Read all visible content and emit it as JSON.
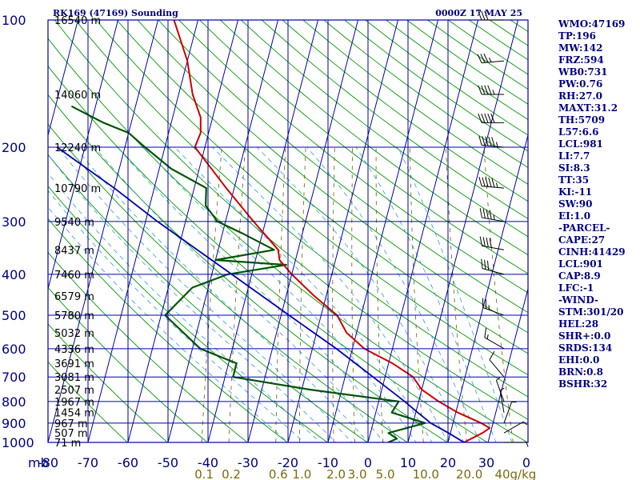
{
  "header": {
    "station": "RK169 (47169) Sounding",
    "time": "0000Z 17 MAY 25"
  },
  "indices": [
    "WMO:47169",
    "TP:196",
    "MW:142",
    "FRZ:594",
    "WB0:731",
    "PW:0.76",
    "RH:27.0",
    "MAXT:31.2",
    "TH:5709",
    "L57:6.6",
    "LCL:981",
    "LI:7.7",
    "SI:8.3",
    "TT:35",
    "KI:-11",
    "SW:90",
    "EI:1.0",
    "-PARCEL-",
    "CAPE:27",
    "CINH:41429",
    "LCL:901",
    "CAP:8.9",
    "LFC:-1",
    "-WIND-",
    "STM:301/20",
    "HEL:28",
    "SHR+:0.0",
    "SRDS:134",
    "EHI:0.0",
    "BRN:0.8",
    "BSHR:32"
  ],
  "colors": {
    "grid": "#0000aa",
    "dry_adiabat": "#009900",
    "temperature": "#cc0000",
    "dewpoint": "#005500",
    "parcel": "#0000aa",
    "mixing_ratio": "#6b5a00",
    "text": "#000080"
  },
  "chart_data": {
    "type": "skew-t",
    "pressure_levels_mb": [
      100,
      200,
      300,
      400,
      500,
      600,
      700,
      800,
      900,
      1000
    ],
    "pressure_axis_label": "mb",
    "temperature_ticks_c": [
      -80,
      -70,
      -60,
      -50,
      -40,
      -30,
      -20,
      -10,
      0,
      10,
      20
    ],
    "temperature_tick_labels": [
      "-80",
      "-70",
      "-60",
      "-50",
      "-40",
      "-30",
      "-20",
      "-10",
      "0",
      "10",
      "20"
    ],
    "wind_axis_ticks": [
      "30",
      "0"
    ],
    "mixing_ratio_labels": [
      "0.1",
      "0.2",
      "0.6",
      "1.0",
      "2.0",
      "3.0",
      "5.0",
      "10.0",
      "20.0",
      "40g/kg"
    ],
    "height_labels": [
      {
        "p": 100,
        "h": "16540 m"
      },
      {
        "p": 150,
        "h": "14060 m"
      },
      {
        "p": 200,
        "h": "12240 m"
      },
      {
        "p": 250,
        "h": "10790 m"
      },
      {
        "p": 300,
        "h": "9540 m"
      },
      {
        "p": 350,
        "h": "8437 m"
      },
      {
        "p": 400,
        "h": "7460 m"
      },
      {
        "p": 450,
        "h": "6579 m"
      },
      {
        "p": 500,
        "h": "5780 m"
      },
      {
        "p": 550,
        "h": "5032 m"
      },
      {
        "p": 600,
        "h": "4336 m"
      },
      {
        "p": 650,
        "h": "3691 m"
      },
      {
        "p": 700,
        "h": "3081 m"
      },
      {
        "p": 750,
        "h": "2507 m"
      },
      {
        "p": 800,
        "h": "1967 m"
      },
      {
        "p": 850,
        "h": "1454 m"
      },
      {
        "p": 900,
        "h": "967 m"
      },
      {
        "p": 950,
        "h": "507 m"
      },
      {
        "p": 1000,
        "h": "71 m"
      }
    ],
    "temperature_profile": [
      {
        "p": 1000,
        "t": 24.0
      },
      {
        "p": 950,
        "t": 28.0
      },
      {
        "p": 925,
        "t": 29.5
      },
      {
        "p": 900,
        "t": 27.0
      },
      {
        "p": 850,
        "t": 20.5
      },
      {
        "p": 800,
        "t": 15.0
      },
      {
        "p": 750,
        "t": 10.0
      },
      {
        "p": 700,
        "t": 7.0
      },
      {
        "p": 650,
        "t": 1.0
      },
      {
        "p": 600,
        "t": -7.0
      },
      {
        "p": 550,
        "t": -12.5
      },
      {
        "p": 500,
        "t": -16.0
      },
      {
        "p": 450,
        "t": -23.0
      },
      {
        "p": 400,
        "t": -30.0
      },
      {
        "p": 370,
        "t": -34.0
      },
      {
        "p": 350,
        "t": -35.0
      },
      {
        "p": 330,
        "t": -38.0
      },
      {
        "p": 300,
        "t": -43.0
      },
      {
        "p": 250,
        "t": -52.0
      },
      {
        "p": 220,
        "t": -58.0
      },
      {
        "p": 200,
        "t": -62.5
      },
      {
        "p": 185,
        "t": -62.0
      },
      {
        "p": 170,
        "t": -63.0
      },
      {
        "p": 150,
        "t": -66.5
      },
      {
        "p": 125,
        "t": -70.0
      },
      {
        "p": 100,
        "t": -76.0
      }
    ],
    "dewpoint_profile": [
      {
        "p": 1000,
        "t": 5.0
      },
      {
        "p": 980,
        "t": 7.0
      },
      {
        "p": 950,
        "t": 4.5
      },
      {
        "p": 900,
        "t": 13.0
      },
      {
        "p": 850,
        "t": 4.0
      },
      {
        "p": 800,
        "t": 5.0
      },
      {
        "p": 750,
        "t": -18.0
      },
      {
        "p": 700,
        "t": -38.0
      },
      {
        "p": 650,
        "t": -38.0
      },
      {
        "p": 600,
        "t": -48.0
      },
      {
        "p": 500,
        "t": -59.0
      },
      {
        "p": 430,
        "t": -54.0
      },
      {
        "p": 400,
        "t": -46.0
      },
      {
        "p": 380,
        "t": -32.0
      },
      {
        "p": 370,
        "t": -50.0
      },
      {
        "p": 350,
        "t": -36.0
      },
      {
        "p": 320,
        "t": -45.0
      },
      {
        "p": 300,
        "t": -52.0
      },
      {
        "p": 275,
        "t": -56.0
      },
      {
        "p": 250,
        "t": -57.0
      },
      {
        "p": 225,
        "t": -67.0
      },
      {
        "p": 200,
        "t": -75.0
      },
      {
        "p": 185,
        "t": -80.0
      },
      {
        "p": 175,
        "t": -87.0
      },
      {
        "p": 160,
        "t": -96.0
      }
    ],
    "parcel_profile": [
      {
        "p": 1000,
        "t": 24.0
      },
      {
        "p": 950,
        "t": 19.5
      },
      {
        "p": 901,
        "t": 14.5
      },
      {
        "p": 850,
        "t": 10.5
      },
      {
        "p": 800,
        "t": 6.5
      },
      {
        "p": 700,
        "t": -3.0
      },
      {
        "p": 600,
        "t": -14.0
      },
      {
        "p": 500,
        "t": -28.0
      },
      {
        "p": 400,
        "t": -45.0
      },
      {
        "p": 300,
        "t": -67.0
      },
      {
        "p": 250,
        "t": -80.0
      },
      {
        "p": 200,
        "t": -97.0
      }
    ],
    "wind_barbs": [
      {
        "p": 100,
        "dir": 270,
        "spd": 30
      },
      {
        "p": 125,
        "dir": 265,
        "spd": 35
      },
      {
        "p": 150,
        "dir": 270,
        "spd": 45
      },
      {
        "p": 175,
        "dir": 270,
        "spd": 50
      },
      {
        "p": 200,
        "dir": 275,
        "spd": 55
      },
      {
        "p": 250,
        "dir": 275,
        "spd": 55
      },
      {
        "p": 300,
        "dir": 280,
        "spd": 45
      },
      {
        "p": 350,
        "dir": 280,
        "spd": 40
      },
      {
        "p": 400,
        "dir": 285,
        "spd": 30
      },
      {
        "p": 500,
        "dir": 290,
        "spd": 25
      },
      {
        "p": 600,
        "dir": 300,
        "spd": 15
      },
      {
        "p": 700,
        "dir": 320,
        "spd": 10
      },
      {
        "p": 800,
        "dir": 340,
        "spd": 5
      },
      {
        "p": 850,
        "dir": 350,
        "spd": 5
      },
      {
        "p": 900,
        "dir": 20,
        "spd": 5
      },
      {
        "p": 950,
        "dir": 60,
        "spd": 5
      },
      {
        "p": 1000,
        "dir": 90,
        "spd": 5
      }
    ],
    "grid": true
  }
}
